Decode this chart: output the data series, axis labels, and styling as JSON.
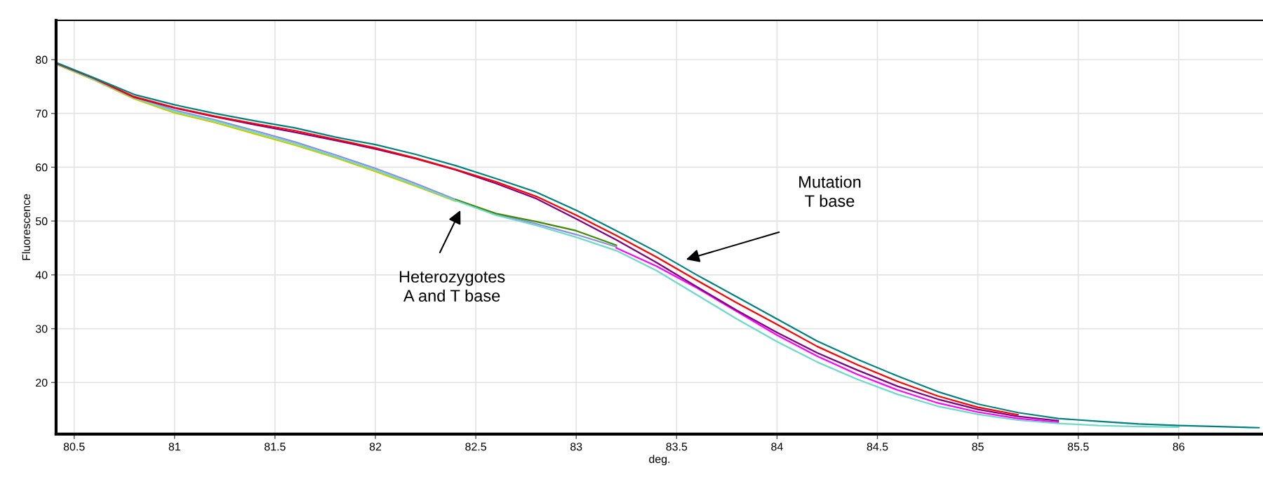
{
  "chart_data": {
    "type": "line",
    "xlabel": "deg.",
    "ylabel": "Fluorescence",
    "x": [
      80.42,
      80.6,
      80.8,
      81.0,
      81.2,
      81.4,
      81.6,
      81.8,
      82.0,
      82.2,
      82.4,
      82.6,
      82.8,
      83.0,
      83.2,
      83.4,
      83.6,
      83.8,
      84.0,
      84.2,
      84.4,
      84.6,
      84.8,
      85.0,
      85.2,
      85.4,
      85.6,
      85.8,
      86.0,
      86.2,
      86.4
    ],
    "series": [
      {
        "color": "#8c8ce0",
        "values": [
          79.0,
          76.3,
          73.0,
          70.6,
          68.8,
          66.8,
          64.7,
          62.3,
          59.8,
          57.0,
          54.0,
          51.3,
          49.5,
          47.5,
          45.2,
          null,
          null,
          null,
          null,
          null,
          null,
          null,
          null,
          null,
          null,
          null,
          null,
          null,
          null,
          null,
          null
        ]
      },
      {
        "color": "#c8c800",
        "values": [
          79.0,
          76.2,
          72.7,
          70.1,
          68.3,
          66.2,
          64.1,
          61.8,
          59.2,
          56.5,
          53.7,
          null,
          null,
          null,
          null,
          null,
          null,
          null,
          null,
          null,
          null,
          null,
          null,
          null,
          null,
          null,
          null,
          null,
          null,
          null,
          null
        ]
      },
      {
        "color": "#3c8c00",
        "values": [
          null,
          null,
          null,
          null,
          null,
          null,
          null,
          null,
          null,
          null,
          54.0,
          51.4,
          49.9,
          48.2,
          45.5,
          null,
          null,
          null,
          null,
          null,
          null,
          null,
          null,
          null,
          null,
          null,
          null,
          null,
          null,
          null,
          null
        ]
      },
      {
        "color": "#ff00ff",
        "values": [
          null,
          null,
          null,
          null,
          null,
          null,
          null,
          null,
          null,
          null,
          null,
          null,
          null,
          null,
          45.0,
          41.6,
          37.6,
          33.2,
          28.8,
          24.9,
          21.5,
          18.6,
          16.2,
          14.5,
          13.3,
          12.6,
          null,
          null,
          null,
          null,
          null
        ]
      },
      {
        "color": "#70d8c8",
        "values": [
          79.1,
          76.3,
          72.9,
          70.4,
          68.6,
          66.5,
          64.4,
          62.0,
          59.5,
          56.7,
          53.8,
          51.1,
          49.2,
          47.0,
          44.5,
          40.8,
          36.3,
          31.8,
          27.6,
          23.8,
          20.6,
          17.8,
          15.6,
          14.1,
          13.0,
          12.4,
          12.0,
          11.8,
          11.7,
          null,
          null
        ]
      },
      {
        "color": "#800080",
        "values": [
          79.2,
          76.5,
          73.0,
          71.0,
          69.4,
          67.9,
          66.5,
          65.0,
          63.4,
          61.6,
          59.5,
          57.0,
          54.2,
          50.4,
          46.5,
          42.3,
          37.8,
          33.4,
          29.3,
          25.5,
          22.3,
          19.3,
          16.9,
          15.0,
          13.7,
          12.9,
          null,
          null,
          null,
          null,
          null
        ]
      },
      {
        "color": "#ff0000",
        "values": [
          79.2,
          76.5,
          73.1,
          71.1,
          69.5,
          68.1,
          66.8,
          65.2,
          63.6,
          61.7,
          59.6,
          57.3,
          54.6,
          51.1,
          47.3,
          43.3,
          39.0,
          34.8,
          30.8,
          26.7,
          23.3,
          20.2,
          17.5,
          15.4,
          14.0,
          null,
          null,
          null,
          null,
          null,
          null
        ]
      },
      {
        "color": "#008080",
        "values": [
          79.3,
          76.6,
          73.5,
          71.6,
          70.0,
          68.6,
          67.3,
          65.6,
          64.2,
          62.4,
          60.3,
          57.9,
          55.4,
          52.0,
          48.2,
          44.3,
          40.0,
          35.9,
          31.8,
          27.7,
          24.3,
          21.2,
          18.3,
          16.0,
          14.4,
          13.3,
          12.8,
          12.3,
          12.0,
          11.8,
          11.6
        ]
      }
    ],
    "xlim": [
      80.41,
      86.42
    ],
    "ylim": [
      10.4,
      87.3
    ],
    "xticks": [
      80.5,
      81,
      81.5,
      82,
      82.5,
      83,
      83.5,
      84,
      84.5,
      85,
      85.5,
      86
    ],
    "yticks": [
      20,
      30,
      40,
      50,
      60,
      70,
      80
    ],
    "grid": true,
    "marker": "none",
    "line_style": "solid",
    "annotations": [
      "Mutation\nT base",
      "Heterozygotes\nA and T base"
    ]
  }
}
